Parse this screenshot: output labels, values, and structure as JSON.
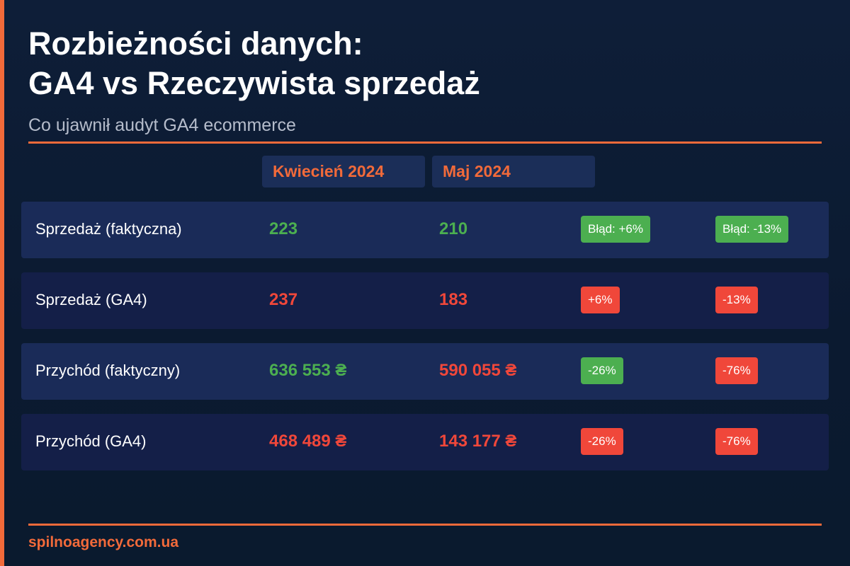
{
  "header": {
    "title": [
      "Rozbieżności danych:",
      "GA4 vs Rzeczywista sprzedaż"
    ],
    "subtitle": "Co ujawnił audyt GA4 ecommerce"
  },
  "table": {
    "columns": [
      "Kwiecień 2024",
      "Maj 2024"
    ],
    "row_colors": [
      "#1a2b58",
      "#141f48"
    ],
    "rows": [
      {
        "label": "Sprzedaż (faktyczna)",
        "values": [
          "223",
          "210"
        ],
        "value_colors": [
          "#4caf50",
          "#4caf50"
        ],
        "badges": [
          "Błąd: +6%",
          "Błąd: -13%"
        ],
        "badge_colors": [
          "#4caf50",
          "#4caf50"
        ]
      },
      {
        "label": "Sprzedaż (GA4)",
        "values": [
          "237",
          "183"
        ],
        "value_colors": [
          "#f0473a",
          "#f0473a"
        ],
        "badges": [
          "+6%",
          "-13%"
        ],
        "badge_colors": [
          "#f0473a",
          "#f0473a"
        ]
      },
      {
        "label": "Przychód (faktyczny)",
        "values": [
          "636 553 ₴",
          "590 055 ₴"
        ],
        "value_colors": [
          "#4caf50",
          "#f0473a"
        ],
        "badges": [
          "-26%",
          "-76%"
        ],
        "badge_colors": [
          "#4caf50",
          "#f0473a"
        ]
      },
      {
        "label": "Przychód (GA4)",
        "values": [
          "468 489 ₴",
          "143 177 ₴"
        ],
        "value_colors": [
          "#f0473a",
          "#f0473a"
        ],
        "badges": [
          "-26%",
          "-76%"
        ],
        "badge_colors": [
          "#f0473a",
          "#f0473a"
        ]
      }
    ]
  },
  "footer": {
    "text": "spilnoagency.com.ua"
  }
}
